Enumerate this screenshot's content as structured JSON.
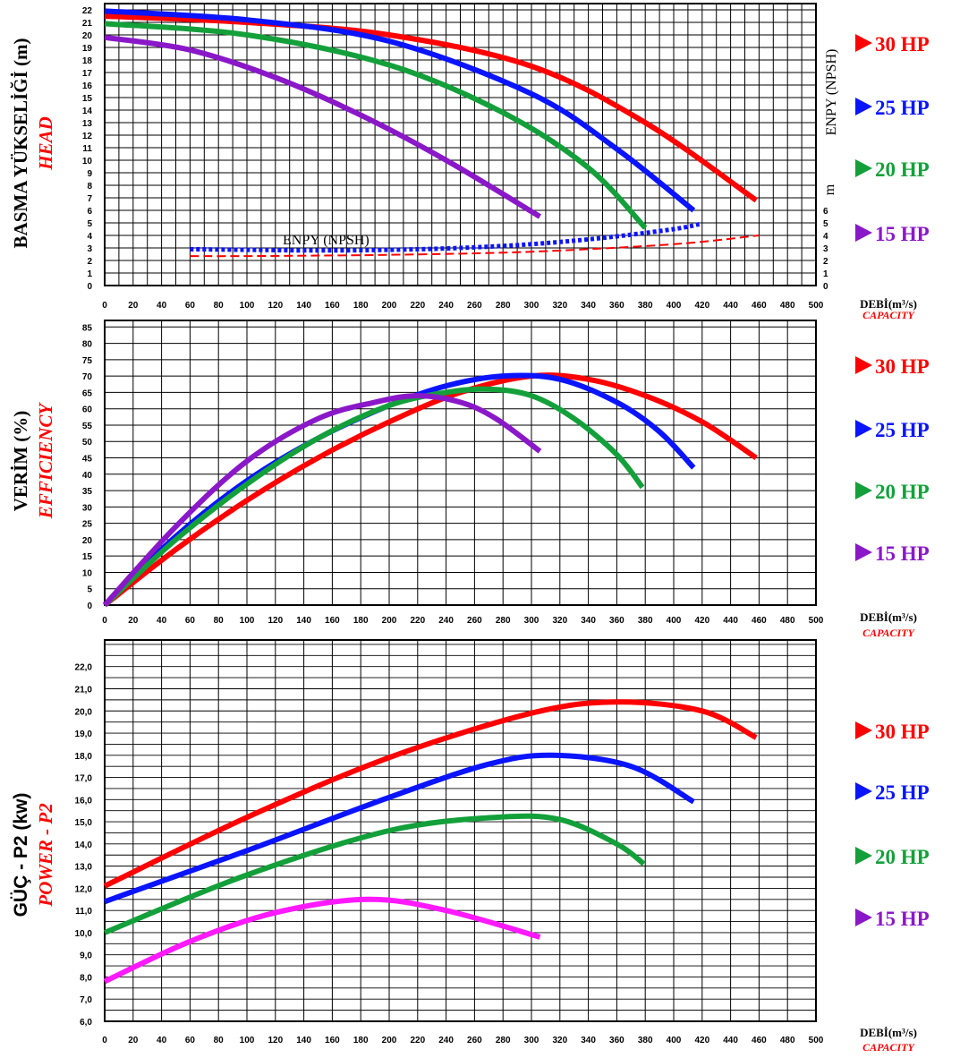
{
  "colors": {
    "hp30": "#ff0000",
    "hp25": "#0a14ff",
    "hp20": "#13a03a",
    "hp15": "#8a18c8",
    "hp15_power": "#ff19ff"
  },
  "legend": [
    {
      "label": "30  HP",
      "color": "#ff0000"
    },
    {
      "label": "25  HP",
      "color": "#0a14ff"
    },
    {
      "label": "20 HP",
      "color": "#13a03a"
    },
    {
      "label": "15 HP",
      "color": "#8a18c8"
    }
  ],
  "chart_data": [
    {
      "type": "line",
      "ylabel": "BASMA YÜKSELİĞİ (m)",
      "ylabel_en": "HEAD",
      "xlabel": "DEBİ(m³/s)",
      "xlabel_en": "CAPACITY",
      "xlim": [
        0,
        500
      ],
      "ylim": [
        0,
        22.5
      ],
      "x_ticks": [
        0,
        20,
        40,
        60,
        80,
        100,
        120,
        140,
        160,
        180,
        200,
        220,
        240,
        260,
        280,
        300,
        320,
        340,
        360,
        380,
        400,
        420,
        440,
        460,
        480,
        500
      ],
      "y_ticks": [
        0,
        1,
        2,
        3,
        4,
        5,
        6,
        7,
        8,
        9,
        10,
        11,
        12,
        13,
        14,
        15,
        16,
        17,
        18,
        19,
        20,
        21,
        22
      ],
      "right_axis_label": "ENPY (NPSH)",
      "right_axis_unit": "m",
      "right_ticks": [
        0,
        1,
        2,
        3,
        4,
        5,
        6
      ],
      "npsh_label": "ENPY (NPSH)",
      "series": [
        {
          "name": "30  HP",
          "color": "#ff0000",
          "x": [
            0,
            100,
            200,
            300,
            380,
            458
          ],
          "y": [
            21.5,
            21.0,
            20.0,
            17.5,
            13.0,
            6.8
          ]
        },
        {
          "name": "25  HP",
          "color": "#0a14ff",
          "x": [
            0,
            100,
            200,
            300,
            360,
            414
          ],
          "y": [
            21.9,
            21.2,
            19.5,
            15.3,
            10.9,
            6.0
          ]
        },
        {
          "name": "20 HP",
          "color": "#13a03a",
          "x": [
            0,
            100,
            200,
            280,
            340,
            380
          ],
          "y": [
            20.9,
            20.0,
            17.6,
            13.8,
            9.4,
            4.6
          ]
        },
        {
          "name": "15 HP",
          "color": "#8a18c8",
          "x": [
            0,
            60,
            120,
            180,
            240,
            306
          ],
          "y": [
            19.8,
            18.8,
            16.6,
            13.6,
            10.0,
            5.5
          ]
        }
      ],
      "npsh_series": [
        {
          "name": "25 HP NPSH",
          "color": "#0a14ff",
          "style": "dotted",
          "x": [
            60,
            100,
            150,
            200,
            250,
            300,
            350,
            400,
            418
          ],
          "y": [
            2.9,
            2.85,
            2.8,
            2.85,
            3.0,
            3.3,
            3.8,
            4.5,
            4.9
          ]
        },
        {
          "name": "30 HP NPSH",
          "color": "#ff0000",
          "style": "dashed",
          "x": [
            60,
            100,
            200,
            300,
            400,
            460
          ],
          "y": [
            2.35,
            2.35,
            2.45,
            2.7,
            3.3,
            4.0
          ]
        }
      ]
    },
    {
      "type": "line",
      "ylabel": "VERİM (%)",
      "ylabel_en": "EFFICIENCY",
      "xlabel": "DEBİ(m³/s)",
      "xlabel_en": "CAPACITY",
      "xlim": [
        0,
        500
      ],
      "ylim": [
        0,
        87
      ],
      "x_ticks": [
        0,
        20,
        40,
        60,
        80,
        100,
        120,
        140,
        160,
        180,
        200,
        220,
        240,
        260,
        280,
        300,
        320,
        340,
        360,
        380,
        400,
        420,
        440,
        460,
        480,
        500
      ],
      "y_ticks": [
        0,
        5,
        10,
        15,
        20,
        25,
        30,
        35,
        40,
        45,
        50,
        55,
        60,
        65,
        70,
        75,
        80,
        85
      ],
      "series": [
        {
          "name": "30  HP",
          "color": "#ff0000",
          "x": [
            0,
            50,
            100,
            150,
            200,
            250,
            300,
            340,
            380,
            420,
            458
          ],
          "y": [
            0,
            17,
            32,
            45,
            56,
            65,
            70,
            69,
            64,
            56,
            45
          ]
        },
        {
          "name": "25  HP",
          "color": "#0a14ff",
          "x": [
            0,
            50,
            100,
            150,
            200,
            240,
            280,
            320,
            360,
            390,
            414
          ],
          "y": [
            0,
            21,
            38,
            51,
            61,
            67,
            70,
            69,
            62,
            53,
            42
          ]
        },
        {
          "name": "20 HP",
          "color": "#13a03a",
          "x": [
            0,
            50,
            100,
            150,
            200,
            240,
            270,
            300,
            330,
            360,
            378
          ],
          "y": [
            0,
            20,
            37,
            51,
            61,
            65,
            66,
            64,
            57,
            46,
            36
          ]
        },
        {
          "name": "15 HP",
          "color": "#8a18c8",
          "x": [
            0,
            50,
            100,
            150,
            190,
            220,
            250,
            275,
            306
          ],
          "y": [
            0,
            24,
            44,
            57,
            62,
            64,
            62,
            57,
            47
          ]
        }
      ]
    },
    {
      "type": "line",
      "ylabel": "GÜÇ - P2 (kw)",
      "ylabel_en": "POWER - P2",
      "xlabel": "DEBİ(m³/s)",
      "xlabel_en": "CAPACITY",
      "xlim": [
        0,
        500
      ],
      "ylim": [
        6.0,
        23.2
      ],
      "x_ticks": [
        0,
        20,
        40,
        60,
        80,
        100,
        120,
        140,
        160,
        180,
        200,
        220,
        240,
        260,
        280,
        300,
        320,
        340,
        360,
        380,
        400,
        420,
        440,
        460,
        480,
        500
      ],
      "y_ticks": [
        "6,0",
        "7,0",
        "8,0",
        "9,0",
        "10,0",
        "11,0",
        "12,0",
        "13,0",
        "14,0",
        "15,0",
        "16,0",
        "17,0",
        "18,0",
        "19,0",
        "20,0",
        "21,0",
        "22,0"
      ],
      "series": [
        {
          "name": "30  HP",
          "color": "#ff0000",
          "x": [
            0,
            100,
            200,
            300,
            360,
            420,
            458
          ],
          "y": [
            12.1,
            15.2,
            17.9,
            19.9,
            20.4,
            20.0,
            18.8
          ]
        },
        {
          "name": "25  HP",
          "color": "#0a14ff",
          "x": [
            0,
            100,
            200,
            270,
            315,
            370,
            414
          ],
          "y": [
            11.4,
            13.7,
            16.1,
            17.6,
            18.0,
            17.5,
            15.9
          ]
        },
        {
          "name": "20 HP",
          "color": "#13a03a",
          "x": [
            0,
            100,
            200,
            275,
            320,
            360,
            379
          ],
          "y": [
            10.0,
            12.6,
            14.6,
            15.2,
            15.1,
            14.0,
            13.1
          ]
        },
        {
          "name": "15 HP",
          "color": "#ff19ff",
          "x": [
            0,
            60,
            120,
            185,
            240,
            306
          ],
          "y": [
            7.8,
            9.6,
            10.9,
            11.5,
            11.0,
            9.8
          ]
        }
      ]
    }
  ]
}
